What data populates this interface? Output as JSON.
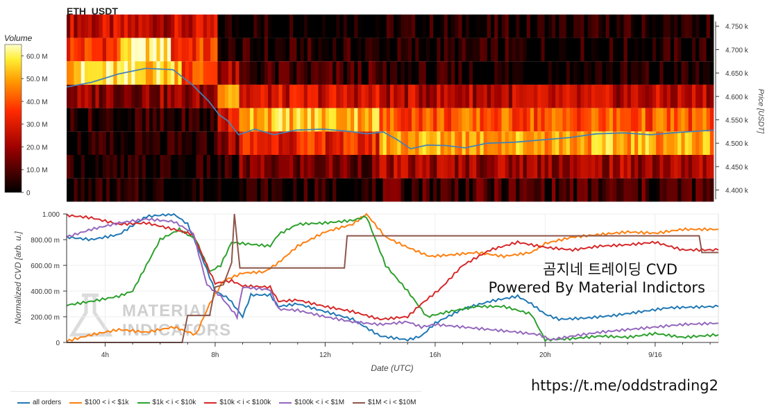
{
  "chart_data": [
    {
      "type": "heatmap",
      "title": "ETH_USDT",
      "ylabel": "Price [USDT]",
      "y_tick_labels": [
        "4.750 k",
        "4.700 k",
        "4.650 k",
        "4.600 k",
        "4.550 k",
        "4.500 k",
        "4.450 k",
        "4.400 k"
      ],
      "ylim": [
        4380,
        4760
      ],
      "price_bins": [
        4750,
        4700,
        4650,
        4600,
        4550,
        4500,
        4450,
        4400
      ],
      "colorbar": {
        "title": "Volume",
        "tick_labels": [
          "60.0 M",
          "50.0 M",
          "40.0 M",
          "30.0 M",
          "20.0 M",
          "10.0 M",
          "0"
        ],
        "range": [
          0,
          65000000
        ]
      },
      "time_range_hours": [
        2.6,
        26.3
      ],
      "price_line": {
        "color": "#4682b4",
        "points": [
          [
            2.6,
            4620
          ],
          [
            3.5,
            4630
          ],
          [
            4.5,
            4648
          ],
          [
            5.5,
            4660
          ],
          [
            6.5,
            4657
          ],
          [
            7.2,
            4625
          ],
          [
            7.8,
            4590
          ],
          [
            8.2,
            4560
          ],
          [
            8.5,
            4548
          ],
          [
            8.9,
            4518
          ],
          [
            9.5,
            4530
          ],
          [
            10.2,
            4518
          ],
          [
            11.0,
            4528
          ],
          [
            12.0,
            4530
          ],
          [
            13.0,
            4525
          ],
          [
            13.6,
            4520
          ],
          [
            14.2,
            4524
          ],
          [
            14.7,
            4508
          ],
          [
            15.2,
            4488
          ],
          [
            15.8,
            4496
          ],
          [
            16.5,
            4495
          ],
          [
            17.2,
            4490
          ],
          [
            18.0,
            4500
          ],
          [
            19.0,
            4502
          ],
          [
            20.2,
            4508
          ],
          [
            21.0,
            4512
          ],
          [
            22.0,
            4520
          ],
          [
            23.0,
            4522
          ],
          [
            24.0,
            4518
          ],
          [
            25.0,
            4523
          ],
          [
            26.3,
            4528
          ]
        ]
      }
    },
    {
      "type": "line",
      "xlabel": "Date (UTC)",
      "ylabel": "Normalized CVD [arb. u.]",
      "x_tick_labels": [
        "4h",
        "8h",
        "12h",
        "16h",
        "20h",
        "9/16"
      ],
      "x_ticks_hours": [
        4,
        8,
        12,
        16,
        20,
        24
      ],
      "xlim": [
        2.6,
        26.3
      ],
      "y_tick_labels": [
        "0",
        "200.00 m",
        "400.00 m",
        "600.00 m",
        "800.00 m",
        "1.000"
      ],
      "ylim": [
        0,
        1
      ],
      "series": [
        {
          "name": "all orders",
          "color": "#1f77b4",
          "points": [
            [
              2.6,
              0.82
            ],
            [
              3.5,
              0.8
            ],
            [
              4.5,
              0.84
            ],
            [
              5.5,
              0.98
            ],
            [
              6.5,
              1.0
            ],
            [
              7.0,
              0.92
            ],
            [
              7.6,
              0.62
            ],
            [
              8.0,
              0.4
            ],
            [
              8.5,
              0.34
            ],
            [
              9.0,
              0.2
            ],
            [
              9.3,
              0.37
            ],
            [
              10.0,
              0.37
            ],
            [
              10.3,
              0.28
            ],
            [
              11.0,
              0.3
            ],
            [
              12.0,
              0.24
            ],
            [
              13.0,
              0.18
            ],
            [
              14.0,
              0.05
            ],
            [
              15.0,
              0.02
            ],
            [
              15.5,
              0.05
            ],
            [
              16.0,
              0.15
            ],
            [
              17.0,
              0.26
            ],
            [
              18.0,
              0.32
            ],
            [
              19.0,
              0.36
            ],
            [
              19.5,
              0.3
            ],
            [
              20.0,
              0.22
            ],
            [
              20.5,
              0.18
            ],
            [
              21.5,
              0.19
            ],
            [
              22.5,
              0.21
            ],
            [
              23.5,
              0.24
            ],
            [
              24.5,
              0.27
            ],
            [
              26.3,
              0.28
            ]
          ]
        },
        {
          "name": "$100 < i < $1k",
          "color": "#ff7f0e",
          "points": [
            [
              2.6,
              0.01
            ],
            [
              3.5,
              0.06
            ],
            [
              4.5,
              0.1
            ],
            [
              5.5,
              0.08
            ],
            [
              6.5,
              0.12
            ],
            [
              7.3,
              0.06
            ],
            [
              7.8,
              0.3
            ],
            [
              8.3,
              0.48
            ],
            [
              9.0,
              0.54
            ],
            [
              9.8,
              0.55
            ],
            [
              10.3,
              0.62
            ],
            [
              11.0,
              0.75
            ],
            [
              12.0,
              0.86
            ],
            [
              13.0,
              0.92
            ],
            [
              13.5,
              1.0
            ],
            [
              14.2,
              0.82
            ],
            [
              15.0,
              0.74
            ],
            [
              15.8,
              0.67
            ],
            [
              16.5,
              0.68
            ],
            [
              17.5,
              0.7
            ],
            [
              18.5,
              0.67
            ],
            [
              19.5,
              0.7
            ],
            [
              20.0,
              0.77
            ],
            [
              21.0,
              0.82
            ],
            [
              22.0,
              0.84
            ],
            [
              23.0,
              0.86
            ],
            [
              24.0,
              0.85
            ],
            [
              25.0,
              0.88
            ],
            [
              26.3,
              0.88
            ]
          ]
        },
        {
          "name": "$1k < i < $10k",
          "color": "#2ca02c",
          "points": [
            [
              2.6,
              0.29
            ],
            [
              3.5,
              0.32
            ],
            [
              4.5,
              0.36
            ],
            [
              5.0,
              0.4
            ],
            [
              5.5,
              0.6
            ],
            [
              6.0,
              0.8
            ],
            [
              6.7,
              0.88
            ],
            [
              7.3,
              0.8
            ],
            [
              7.8,
              0.55
            ],
            [
              8.2,
              0.6
            ],
            [
              8.6,
              0.78
            ],
            [
              9.0,
              0.77
            ],
            [
              10.0,
              0.75
            ],
            [
              10.3,
              0.84
            ],
            [
              11.0,
              0.92
            ],
            [
              12.0,
              0.93
            ],
            [
              13.0,
              0.95
            ],
            [
              13.5,
              0.98
            ],
            [
              14.2,
              0.6
            ],
            [
              15.0,
              0.4
            ],
            [
              15.7,
              0.2
            ],
            [
              16.5,
              0.24
            ],
            [
              17.5,
              0.28
            ],
            [
              18.5,
              0.28
            ],
            [
              19.5,
              0.22
            ],
            [
              20.0,
              0.02
            ],
            [
              21.0,
              0.03
            ],
            [
              22.0,
              0.05
            ],
            [
              23.0,
              0.04
            ],
            [
              24.0,
              0.07
            ],
            [
              25.0,
              0.04
            ],
            [
              26.3,
              0.06
            ]
          ]
        },
        {
          "name": "$10k < i < $100k",
          "color": "#d62728",
          "points": [
            [
              2.6,
              0.99
            ],
            [
              3.5,
              0.97
            ],
            [
              4.5,
              0.92
            ],
            [
              5.5,
              0.93
            ],
            [
              6.5,
              0.88
            ],
            [
              7.2,
              0.84
            ],
            [
              7.7,
              0.6
            ],
            [
              8.0,
              0.46
            ],
            [
              8.6,
              0.48
            ],
            [
              9.0,
              0.44
            ],
            [
              10.0,
              0.43
            ],
            [
              10.3,
              0.32
            ],
            [
              11.0,
              0.33
            ],
            [
              12.0,
              0.28
            ],
            [
              13.0,
              0.24
            ],
            [
              14.0,
              0.18
            ],
            [
              15.0,
              0.2
            ],
            [
              15.5,
              0.3
            ],
            [
              16.2,
              0.42
            ],
            [
              17.0,
              0.6
            ],
            [
              18.0,
              0.72
            ],
            [
              19.0,
              0.78
            ],
            [
              20.0,
              0.74
            ],
            [
              21.0,
              0.72
            ],
            [
              22.0,
              0.75
            ],
            [
              23.0,
              0.76
            ],
            [
              24.0,
              0.78
            ],
            [
              25.0,
              0.72
            ],
            [
              26.3,
              0.72
            ]
          ]
        },
        {
          "name": "$100k < i < $1M",
          "color": "#9467bd",
          "points": [
            [
              2.6,
              0.82
            ],
            [
              3.5,
              0.88
            ],
            [
              4.5,
              0.93
            ],
            [
              5.5,
              0.96
            ],
            [
              6.5,
              0.94
            ],
            [
              7.2,
              0.85
            ],
            [
              7.7,
              0.45
            ],
            [
              8.2,
              0.36
            ],
            [
              8.8,
              0.2
            ],
            [
              9.0,
              0.43
            ],
            [
              10.0,
              0.41
            ],
            [
              10.3,
              0.26
            ],
            [
              11.0,
              0.25
            ],
            [
              12.0,
              0.2
            ],
            [
              13.0,
              0.16
            ],
            [
              14.0,
              0.14
            ],
            [
              15.0,
              0.16
            ],
            [
              15.5,
              0.12
            ],
            [
              16.0,
              0.14
            ],
            [
              17.0,
              0.12
            ],
            [
              18.0,
              0.1
            ],
            [
              19.0,
              0.08
            ],
            [
              19.8,
              0.06
            ],
            [
              20.2,
              0.02
            ],
            [
              21.0,
              0.05
            ],
            [
              22.0,
              0.08
            ],
            [
              23.0,
              0.1
            ],
            [
              24.0,
              0.12
            ],
            [
              25.0,
              0.14
            ],
            [
              26.3,
              0.15
            ]
          ]
        },
        {
          "name": "$1M < i < $10M",
          "color": "#8c564b",
          "points": [
            [
              2.6,
              0.0
            ],
            [
              6.8,
              0.0
            ],
            [
              7.0,
              0.21
            ],
            [
              7.8,
              0.21
            ],
            [
              8.0,
              0.43
            ],
            [
              8.3,
              0.45
            ],
            [
              8.6,
              0.62
            ],
            [
              8.7,
              1.0
            ],
            [
              8.9,
              0.58
            ],
            [
              9.0,
              0.58
            ],
            [
              12.0,
              0.58
            ],
            [
              12.7,
              0.58
            ],
            [
              12.8,
              0.83
            ],
            [
              16.0,
              0.83
            ],
            [
              18.0,
              0.83
            ],
            [
              20.0,
              0.83
            ],
            [
              22.0,
              0.83
            ],
            [
              24.0,
              0.83
            ],
            [
              25.6,
              0.83
            ],
            [
              25.7,
              0.7
            ],
            [
              26.3,
              0.7
            ]
          ]
        }
      ]
    }
  ],
  "watermark": {
    "line1": "MATERIAL",
    "line2": "INDICATORS"
  },
  "overlay": {
    "line1": "곰지네 트레이딩 CVD",
    "line2": "Powered By Material Indictors"
  },
  "url": "https://t.me/oddstrading2",
  "colors": {
    "heatmap_low": "#000000",
    "heatmap_mid": "#cc0000",
    "heatmap_high": "#ffff99",
    "frame": "#dddddd"
  }
}
